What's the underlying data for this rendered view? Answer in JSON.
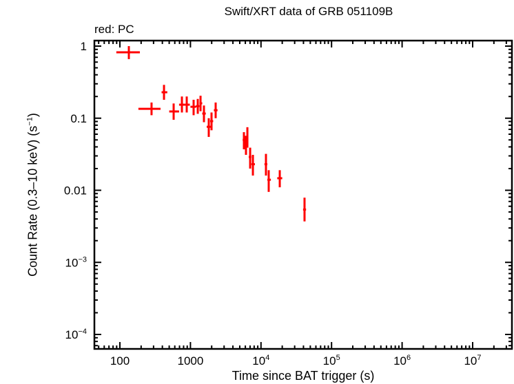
{
  "chart_data": {
    "type": "scatter",
    "title": "Swift/XRT data of GRB 051109B",
    "subtitle": "red: PC",
    "xlabel": "Time since BAT trigger (s)",
    "ylabel": "Count Rate (0.3–10 keV) (s⁻¹)",
    "xscale": "log",
    "yscale": "log",
    "xlim": [
      48,
      35000000
    ],
    "ylim": [
      6e-05,
      1.2
    ],
    "x_tick_labels": [
      "100",
      "1000",
      "10^4",
      "10^5",
      "10^6",
      "10^7"
    ],
    "y_tick_labels": [
      "1",
      "0.1",
      "0.01",
      "10^-3",
      "10^-4"
    ],
    "grid": false,
    "legend": "none",
    "series": [
      {
        "name": "PC",
        "color": "#ff0000",
        "points": [
          {
            "t": 134,
            "t_lo": 89,
            "t_hi": 192,
            "rate": 0.82,
            "rate_lo": 0.66,
            "rate_hi": 1.0
          },
          {
            "t": 281,
            "t_lo": 183,
            "t_hi": 377,
            "rate": 0.135,
            "rate_lo": 0.11,
            "rate_hi": 0.165
          },
          {
            "t": 422,
            "t_lo": 390,
            "t_hi": 470,
            "rate": 0.229,
            "rate_lo": 0.18,
            "rate_hi": 0.29
          },
          {
            "t": 578,
            "t_lo": 500,
            "t_hi": 690,
            "rate": 0.124,
            "rate_lo": 0.095,
            "rate_hi": 0.16
          },
          {
            "t": 757,
            "t_lo": 690,
            "t_hi": 830,
            "rate": 0.154,
            "rate_lo": 0.12,
            "rate_hi": 0.2
          },
          {
            "t": 886,
            "t_lo": 830,
            "t_hi": 980,
            "rate": 0.154,
            "rate_lo": 0.12,
            "rate_hi": 0.2
          },
          {
            "t": 1109,
            "t_lo": 1000,
            "t_hi": 1200,
            "rate": 0.144,
            "rate_lo": 0.11,
            "rate_hi": 0.18
          },
          {
            "t": 1270,
            "t_lo": 1200,
            "t_hi": 1340,
            "rate": 0.147,
            "rate_lo": 0.115,
            "rate_hi": 0.185
          },
          {
            "t": 1390,
            "t_lo": 1340,
            "t_hi": 1470,
            "rate": 0.161,
            "rate_lo": 0.125,
            "rate_hi": 0.205
          },
          {
            "t": 1554,
            "t_lo": 1470,
            "t_hi": 1650,
            "rate": 0.116,
            "rate_lo": 0.088,
            "rate_hi": 0.15
          },
          {
            "t": 1818,
            "t_lo": 1700,
            "t_hi": 1950,
            "rate": 0.076,
            "rate_lo": 0.055,
            "rate_hi": 0.1
          },
          {
            "t": 1990,
            "t_lo": 1900,
            "t_hi": 2100,
            "rate": 0.091,
            "rate_lo": 0.068,
            "rate_hi": 0.12
          },
          {
            "t": 2277,
            "t_lo": 2150,
            "t_hi": 2420,
            "rate": 0.129,
            "rate_lo": 0.1,
            "rate_hi": 0.165
          },
          {
            "t": 5727,
            "t_lo": 5500,
            "t_hi": 5900,
            "rate": 0.05,
            "rate_lo": 0.037,
            "rate_hi": 0.064
          },
          {
            "t": 6124,
            "t_lo": 5900,
            "t_hi": 6300,
            "rate": 0.043,
            "rate_lo": 0.031,
            "rate_hi": 0.057
          },
          {
            "t": 6412,
            "t_lo": 6300,
            "t_hi": 6600,
            "rate": 0.054,
            "rate_lo": 0.039,
            "rate_hi": 0.075
          },
          {
            "t": 7018,
            "t_lo": 6700,
            "t_hi": 7300,
            "rate": 0.029,
            "rate_lo": 0.02,
            "rate_hi": 0.039
          },
          {
            "t": 7678,
            "t_lo": 7300,
            "t_hi": 8200,
            "rate": 0.023,
            "rate_lo": 0.016,
            "rate_hi": 0.031
          },
          {
            "t": 11760,
            "t_lo": 11200,
            "t_hi": 12300,
            "rate": 0.023,
            "rate_lo": 0.016,
            "rate_hi": 0.032
          },
          {
            "t": 12860,
            "t_lo": 12300,
            "t_hi": 13800,
            "rate": 0.014,
            "rate_lo": 0.0095,
            "rate_hi": 0.019
          },
          {
            "t": 18450,
            "t_lo": 17000,
            "t_hi": 20000,
            "rate": 0.0147,
            "rate_lo": 0.011,
            "rate_hi": 0.019
          },
          {
            "t": 41400,
            "t_lo": 39500,
            "t_hi": 43500,
            "rate": 0.0054,
            "rate_lo": 0.0037,
            "rate_hi": 0.0079
          }
        ]
      }
    ]
  },
  "labels": {
    "title": "Swift/XRT data of GRB 051109B",
    "subtitle": "red: PC",
    "xlabel": "Time since BAT trigger (s)",
    "ylabel_main": "Count Rate (0.3–10 keV) (s",
    "ylabel_sup": "−1",
    "ylabel_end": ")"
  }
}
